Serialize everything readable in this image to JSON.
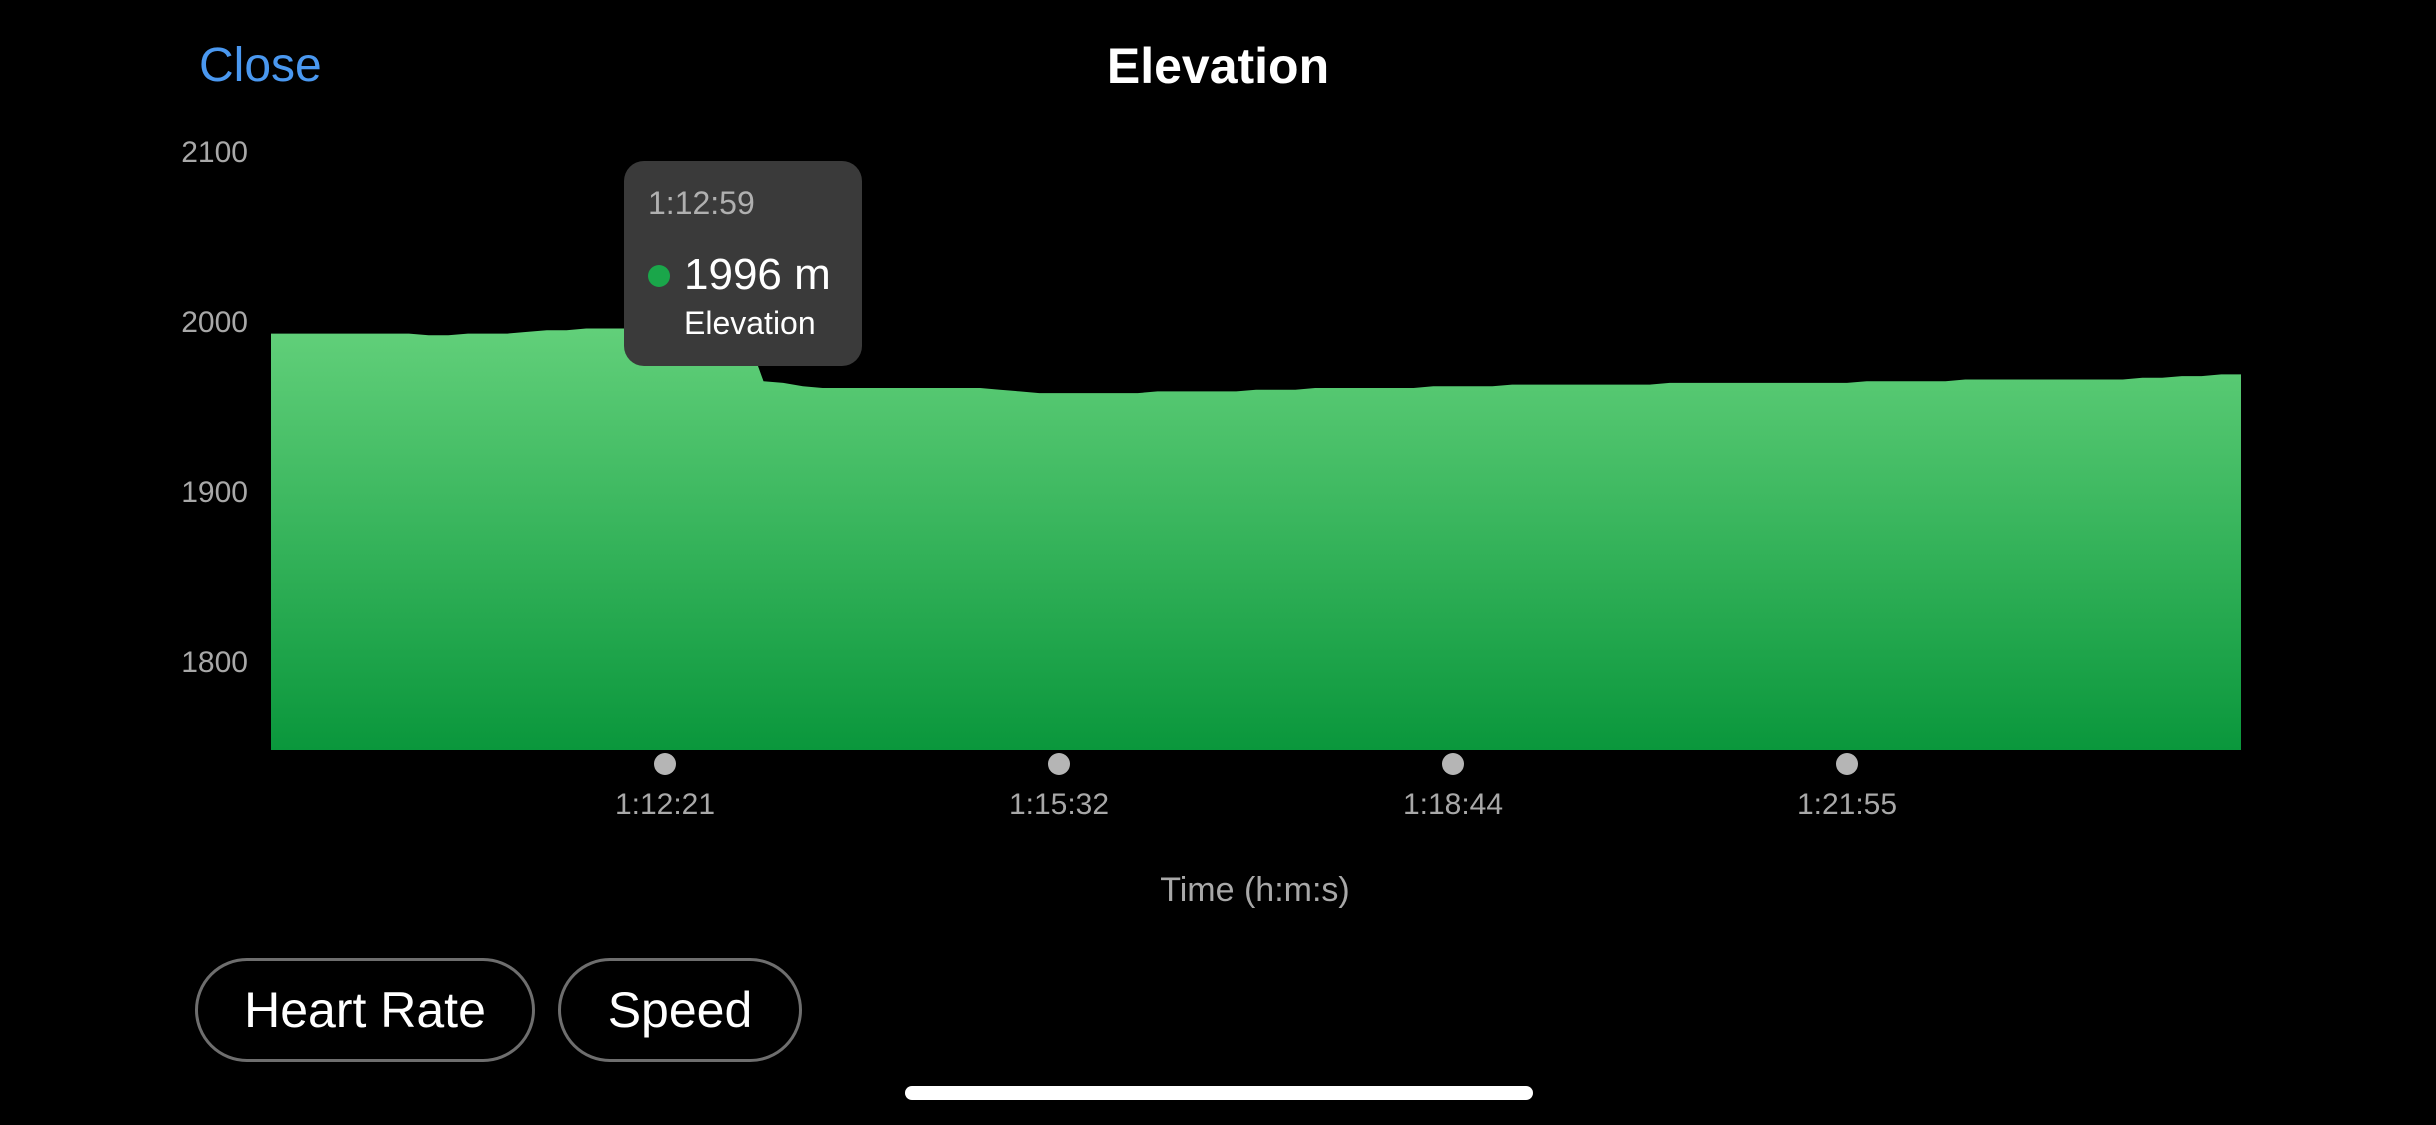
{
  "header": {
    "close_label": "Close",
    "title": "Elevation"
  },
  "tooltip": {
    "time": "1:12:59",
    "value": "1996 m",
    "label": "Elevation",
    "dot_color": "#1aa64a"
  },
  "buttons": {
    "heart_rate": "Heart Rate",
    "speed": "Speed"
  },
  "colors": {
    "accent": "#4a98f0",
    "fill_top": "#62d07a",
    "fill_bottom": "#0a973c"
  },
  "chart_data": {
    "type": "area",
    "title": "",
    "xlabel": "Time (h:m:s)",
    "ylabel": "",
    "y_unit": "m",
    "ylim": [
      1747,
      2100
    ],
    "yticks": [
      2100,
      2000,
      1900,
      1800
    ],
    "x_ticks": [
      "1:12:21",
      "1:15:32",
      "1:18:44",
      "1:21:55"
    ],
    "x_tick_index": [
      20,
      40,
      60,
      80
    ],
    "highlight_index": 24,
    "legend": "none",
    "grid": false,
    "series": [
      {
        "values": [
          1992,
          1992,
          1992,
          1992,
          1992,
          1992,
          1992,
          1992,
          1991,
          1991,
          1992,
          1992,
          1992,
          1993,
          1994,
          1994,
          1995,
          1995,
          1995,
          1995,
          1994,
          1994,
          1995,
          1995,
          1996,
          1964,
          1963,
          1961,
          1960,
          1960,
          1960,
          1960,
          1960,
          1960,
          1960,
          1960,
          1960,
          1959,
          1958,
          1957,
          1957,
          1957,
          1957,
          1957,
          1957,
          1958,
          1958,
          1958,
          1958,
          1958,
          1959,
          1959,
          1959,
          1960,
          1960,
          1960,
          1960,
          1960,
          1960,
          1961,
          1961,
          1961,
          1961,
          1962,
          1962,
          1962,
          1962,
          1962,
          1962,
          1962,
          1962,
          1963,
          1963,
          1963,
          1963,
          1963,
          1963,
          1963,
          1963,
          1963,
          1963,
          1964,
          1964,
          1964,
          1964,
          1964,
          1965,
          1965,
          1965,
          1965,
          1965,
          1965,
          1965,
          1965,
          1965,
          1966,
          1966,
          1967,
          1967,
          1968,
          1968
        ]
      }
    ]
  }
}
